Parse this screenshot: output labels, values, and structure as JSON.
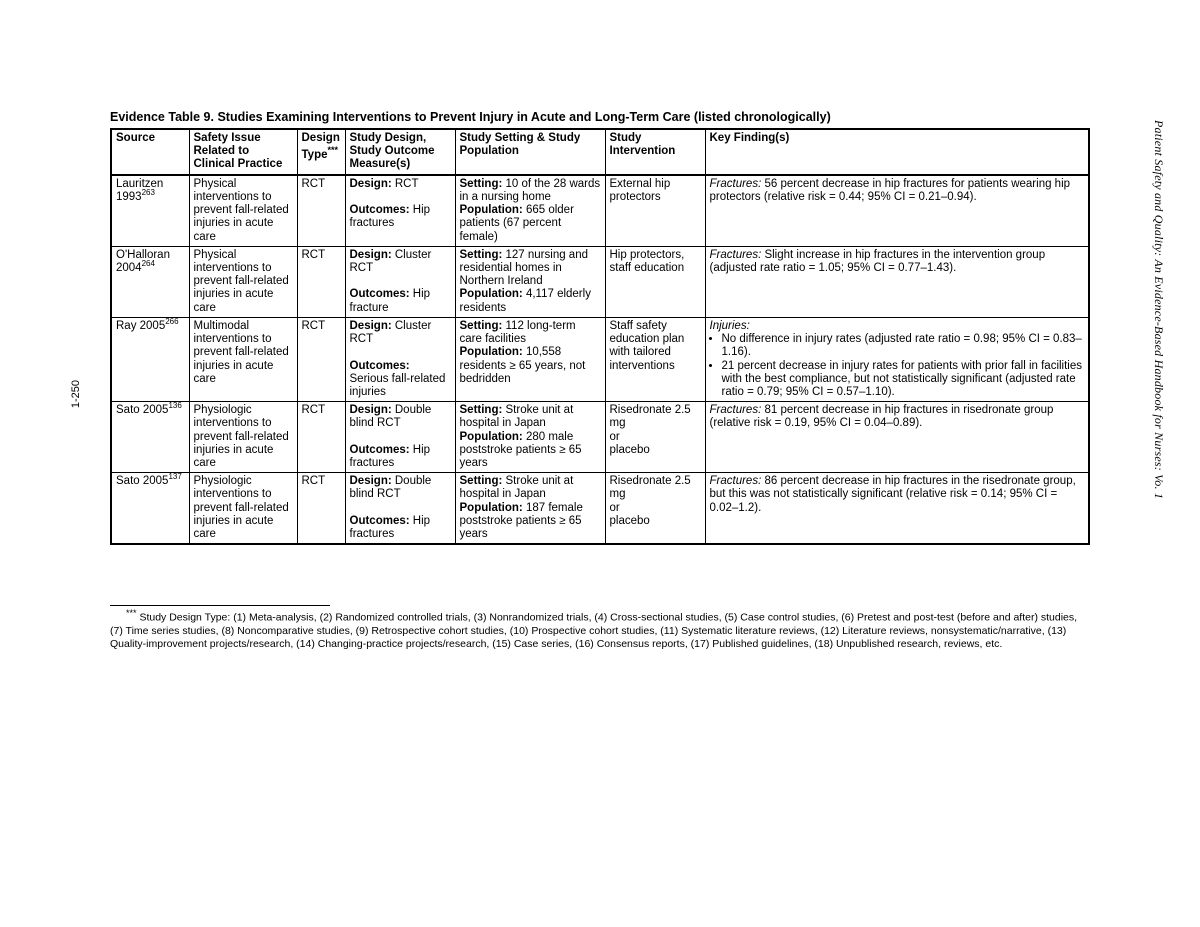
{
  "caption": "Evidence Table 9. Studies Examining Interventions to Prevent Injury in Acute and Long-Term Care (listed chronologically)",
  "side_title": "Patient Safety and Quality: An Evidence-Based Handbook for Nurses: Vo. 1",
  "page_number": "1-250",
  "headers": {
    "source": "Source",
    "safety": "Safety Issue Related to Clinical Practice",
    "type_label": "Design Type",
    "type_marker": "***",
    "design": "Study Design, Study Outcome Measure(s)",
    "setting": "Study Setting & Study Population",
    "intervention": "Study Intervention",
    "findings": "Key Finding(s)"
  },
  "rows": [
    {
      "source_name": "Lauritzen 1993",
      "source_ref": "263",
      "safety": "Physical interventions to prevent fall-related injuries in acute care",
      "type": "RCT",
      "design_label": "Design:",
      "design_text": " RCT",
      "outcomes_label": "Outcomes:",
      "outcomes_text": " Hip fractures",
      "setting_label": "Setting:",
      "setting_text": " 10 of the 28 wards in a nursing home",
      "pop_label": "Population:",
      "pop_text": " 665 older patients (67 percent female)",
      "intervention": "External hip protectors",
      "find_head": "Fractures:",
      "find_text": " 56 percent decrease in hip fractures for patients wearing hip protectors (relative risk = 0.44; 95% CI = 0.21–0.94).",
      "bullets": null
    },
    {
      "source_name": "O'Halloran 2004",
      "source_ref": "264",
      "safety": "Physical interventions to prevent fall-related injuries in acute care",
      "type": "RCT",
      "design_label": "Design:",
      "design_text": " Cluster RCT",
      "outcomes_label": "Outcomes:",
      "outcomes_text": " Hip fracture",
      "setting_label": "Setting:",
      "setting_text": " 127 nursing and residential homes in Northern Ireland",
      "pop_label": "Population:",
      "pop_text": " 4,117 elderly residents",
      "intervention": "Hip protectors, staff education",
      "find_head": "Fractures:",
      "find_text": " Slight increase in hip fractures in the intervention group (adjusted rate ratio = 1.05; 95% CI = 0.77–1.43).",
      "bullets": null
    },
    {
      "source_name": "Ray 2005",
      "source_ref": "266",
      "safety": "Multimodal interventions to prevent fall-related injuries in acute care",
      "type": "RCT",
      "design_label": "Design:",
      "design_text": " Cluster RCT",
      "outcomes_label": "Outcomes:",
      "outcomes_text": " Serious fall-related injuries",
      "setting_label": "Setting:",
      "setting_text": " 112 long-term care facilities",
      "pop_label": "Population:",
      "pop_text": " 10,558 residents ≥ 65 years, not bedridden",
      "intervention": "Staff safety education plan with tailored interventions",
      "find_head": "Injuries:",
      "find_text": "",
      "bullets": [
        "No difference in injury rates (adjusted rate ratio = 0.98; 95% CI = 0.83–1.16).",
        "21 percent decrease in injury rates for patients with prior fall in facilities with the best compliance, but not statistically significant (adjusted rate ratio = 0.79; 95% CI = 0.57–1.10)."
      ]
    },
    {
      "source_name": "Sato 2005",
      "source_ref": "136",
      "safety": "Physiologic interventions to prevent fall-related injuries in acute care",
      "type": "RCT",
      "design_label": "Design:",
      "design_text": " Double blind RCT",
      "outcomes_label": "Outcomes:",
      "outcomes_text": " Hip fractures",
      "setting_label": "Setting:",
      "setting_text": " Stroke unit at hospital in Japan",
      "pop_label": "Population:",
      "pop_text": " 280 male poststroke patients ≥ 65 years",
      "intervention": "Risedronate 2.5 mg\nor\nplacebo",
      "find_head": "Fractures:",
      "find_text": " 81 percent decrease in hip fractures in risedronate group (relative risk = 0.19, 95% CI = 0.04–0.89).",
      "bullets": null
    },
    {
      "source_name": "Sato 2005",
      "source_ref": "137",
      "safety": "Physiologic interventions to prevent fall-related injuries in acute care",
      "type": "RCT",
      "design_label": "Design:",
      "design_text": " Double blind RCT",
      "outcomes_label": "Outcomes:",
      "outcomes_text": " Hip fractures",
      "setting_label": "Setting:",
      "setting_text": " Stroke unit at hospital in Japan",
      "pop_label": "Population:",
      "pop_text": " 187 female poststroke patients ≥ 65 years",
      "intervention": "Risedronate 2.5 mg\nor\nplacebo",
      "find_head": "Fractures:",
      "find_text": " 86 percent decrease in hip fractures in the risedronate group, but this was not statistically significant (relative risk = 0.14; 95% CI = 0.02–1.2).",
      "bullets": null
    }
  ],
  "footnote_marker": "***",
  "footnote": "Study Design Type: (1) Meta-analysis, (2) Randomized controlled trials, (3) Nonrandomized trials, (4) Cross-sectional studies, (5) Case control studies, (6) Pretest and post-test (before and after) studies, (7) Time series studies, (8) Noncomparative studies, (9) Retrospective cohort studies, (10) Prospective cohort studies, (11) Systematic literature reviews, (12) Literature reviews, nonsystematic/narrative, (13) Quality-improvement projects/research, (14) Changing-practice projects/research, (15) Case series, (16) Consensus reports, (17) Published guidelines, (18) Unpublished research, reviews, etc."
}
